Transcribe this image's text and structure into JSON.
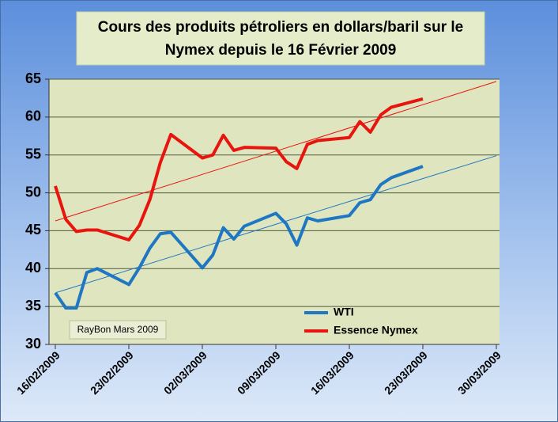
{
  "chart_data": {
    "type": "line",
    "title": [
      "Cours des produits pétroliers en dollars/baril sur le",
      "Nymex  depuis le 16 Février 2009"
    ],
    "annotation": "RayBon Mars 2009",
    "x": [
      "2009-02-16",
      "2009-02-17",
      "2009-02-18",
      "2009-02-19",
      "2009-02-20",
      "2009-02-23",
      "2009-02-24",
      "2009-02-25",
      "2009-02-26",
      "2009-02-27",
      "2009-03-02",
      "2009-03-03",
      "2009-03-04",
      "2009-03-05",
      "2009-03-06",
      "2009-03-09",
      "2009-03-10",
      "2009-03-11",
      "2009-03-12",
      "2009-03-13",
      "2009-03-16",
      "2009-03-17",
      "2009-03-18",
      "2009-03-19",
      "2009-03-20",
      "2009-03-23"
    ],
    "series": [
      {
        "name": "WTI",
        "color": "#1f77c4",
        "values": [
          36.8,
          34.8,
          34.8,
          39.5,
          40.0,
          37.9,
          40.1,
          42.7,
          44.6,
          44.8,
          40.1,
          41.8,
          45.4,
          43.9,
          45.6,
          47.3,
          45.9,
          43.1,
          46.7,
          46.3,
          47.0,
          48.7,
          49.1,
          51.1,
          52.0,
          53.5
        ]
      },
      {
        "name": "Essence Nymex",
        "color": "#e8150f",
        "values": [
          50.9,
          46.5,
          44.9,
          45.1,
          45.1,
          43.8,
          45.7,
          49.1,
          54.0,
          57.7,
          54.6,
          55.0,
          57.6,
          55.6,
          56.0,
          55.9,
          54.1,
          53.2,
          56.4,
          56.9,
          57.3,
          59.4,
          58.0,
          60.3,
          61.3,
          62.4
        ]
      }
    ],
    "trendlines": [
      {
        "color": "#1f77c4",
        "x": [
          "2009-02-16",
          "2009-03-30"
        ],
        "values": [
          36.8,
          54.9
        ]
      },
      {
        "color": "#e8150f",
        "x": [
          "2009-02-16",
          "2009-03-30"
        ],
        "values": [
          46.3,
          64.7
        ]
      }
    ],
    "xlim": [
      "2009-02-16",
      "2009-03-30"
    ],
    "xticks": [
      {
        "value": "2009-02-16",
        "label": "16/02/2009"
      },
      {
        "value": "2009-02-23",
        "label": "23/02/2009"
      },
      {
        "value": "2009-03-02",
        "label": "02/03/2009"
      },
      {
        "value": "2009-03-09",
        "label": "09/03/2009"
      },
      {
        "value": "2009-03-16",
        "label": "16/03/2009"
      },
      {
        "value": "2009-03-23",
        "label": "23/03/2009"
      },
      {
        "value": "2009-03-30",
        "label": "30/03/2009"
      }
    ],
    "ylim": [
      30,
      65
    ],
    "yticks": [
      30,
      35,
      40,
      45,
      50,
      55,
      60,
      65
    ],
    "grid": true
  }
}
